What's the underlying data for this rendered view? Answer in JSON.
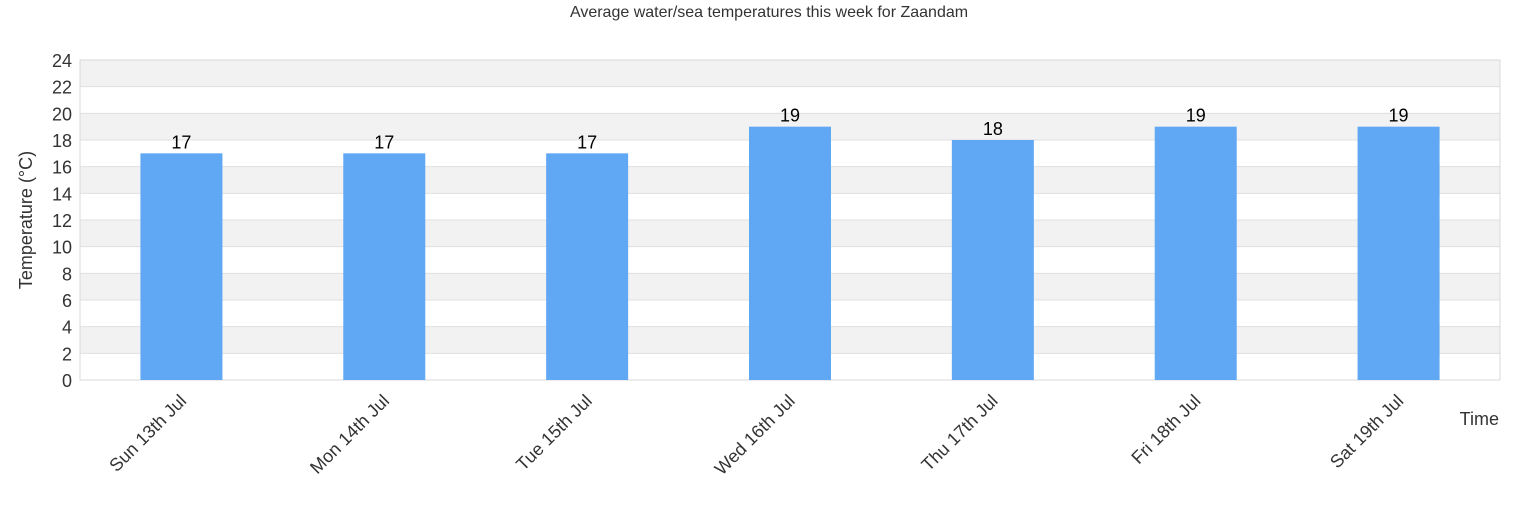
{
  "chart_data": {
    "type": "bar",
    "title": "Average water/sea temperatures this week for Zaandam",
    "xlabel": "Time",
    "ylabel": "Temperature (°C)",
    "categories": [
      "Sun 13th Jul",
      "Mon 14th Jul",
      "Tue 15th Jul",
      "Wed 16th Jul",
      "Thu 17th Jul",
      "Fri 18th Jul",
      "Sat 19th Jul"
    ],
    "values": [
      17,
      17,
      17,
      19,
      18,
      19,
      19
    ],
    "data_labels": [
      "17",
      "17",
      "17",
      "19",
      "18",
      "19",
      "19"
    ],
    "ylim": [
      0,
      24
    ],
    "yticks": [
      0,
      2,
      4,
      6,
      8,
      10,
      12,
      14,
      16,
      18,
      20,
      22,
      24
    ],
    "grid": true,
    "legend": "none",
    "colors": {
      "bar": "#60a7f4",
      "band_alt": "#f2f2f2",
      "gridline": "#e0e0e0",
      "text": "#333333"
    }
  }
}
